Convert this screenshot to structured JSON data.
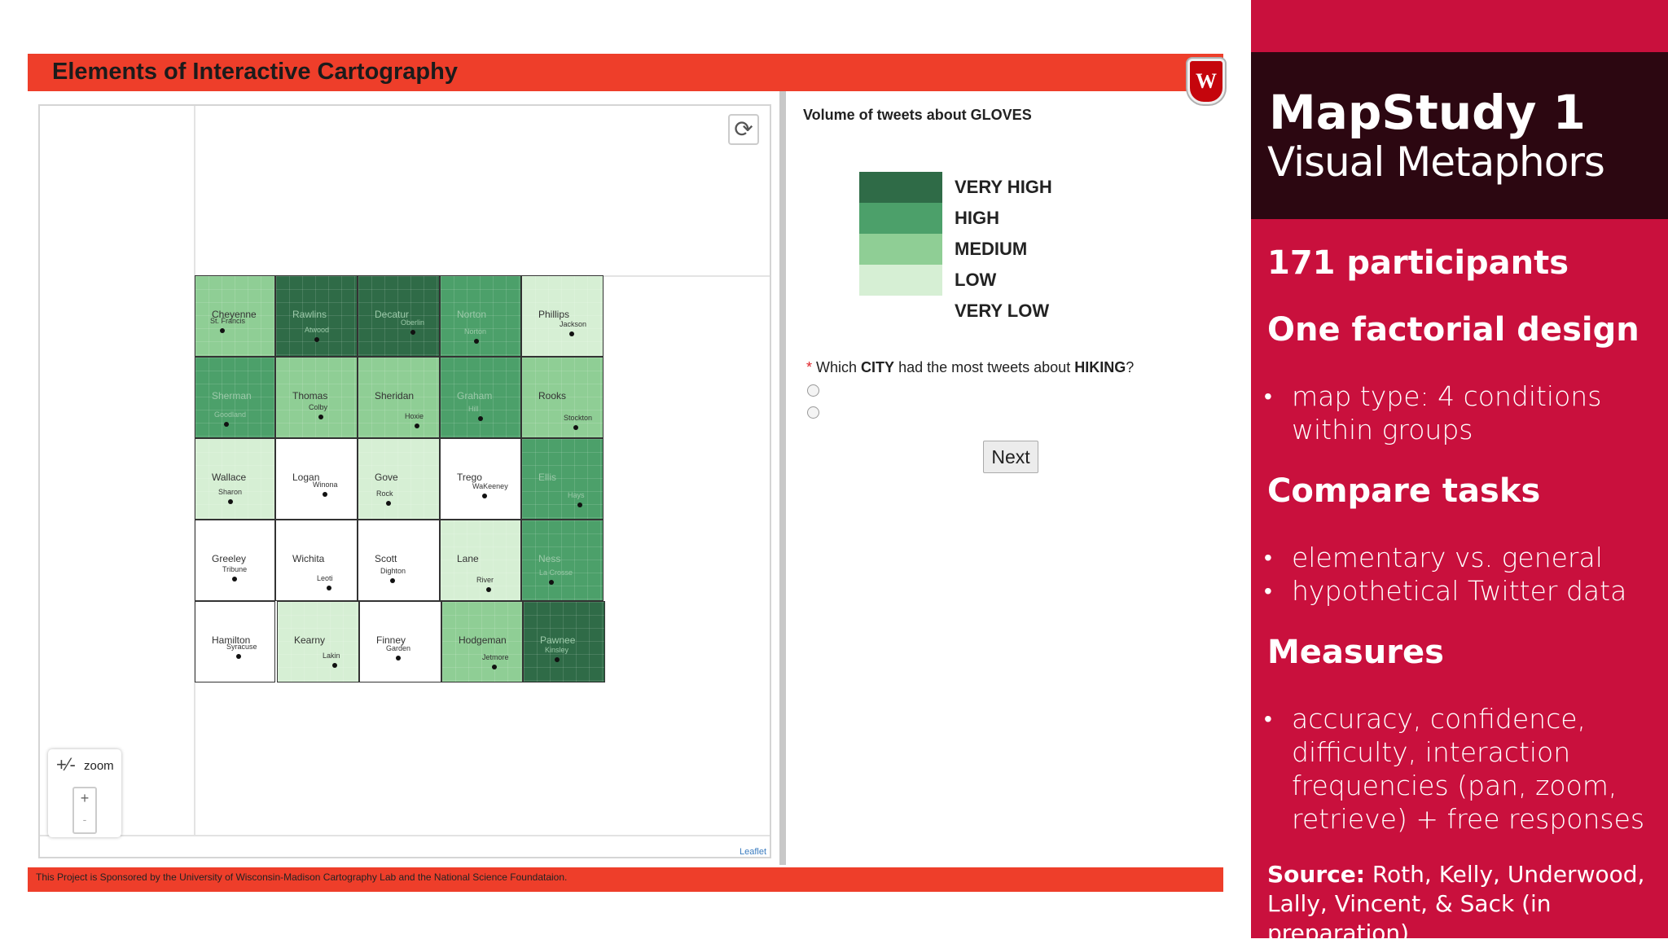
{
  "app": {
    "title": "Elements of Interactive Cartography",
    "crest_letter": "W",
    "footer": "This Project is Sponsored by the University of Wisconsin-Madison Cartography Lab and the National Science Foundataion.",
    "leaflet_attr": "Leaflet",
    "zoom_label": "zoom",
    "zoom_icon_symbol": "+⁄-",
    "zoom_plus": "+",
    "zoom_minus": "-",
    "refresh_symbol": "⟳"
  },
  "legend": {
    "title": "Volume of tweets about GLOVES",
    "classes": [
      {
        "label": "VERY HIGH",
        "color": "#2f6b47"
      },
      {
        "label": "HIGH",
        "color": "#4ca06a"
      },
      {
        "label": "MEDIUM",
        "color": "#8fce95"
      },
      {
        "label": "LOW",
        "color": "#d6efd4"
      },
      {
        "label": "VERY LOW",
        "color": "#ffffff"
      }
    ]
  },
  "question": {
    "asterisk": "*",
    "prefix": "Which ",
    "keyword1": "CITY",
    "middle": " had the most tweets about ",
    "keyword2": "HIKING",
    "suffix": "?",
    "next_label": "Next"
  },
  "counties": [
    {
      "name": "Cheyenne",
      "level": 2,
      "cities": [
        "St. Francis"
      ]
    },
    {
      "name": "Rawlins",
      "level": 0,
      "cities": [
        "Atwood"
      ]
    },
    {
      "name": "Decatur",
      "level": 0,
      "cities": [
        "Oberlin"
      ]
    },
    {
      "name": "Norton",
      "level": 1,
      "cities": [
        "Norton"
      ]
    },
    {
      "name": "Phillips",
      "level": 3,
      "cities": [
        "Jackson"
      ]
    },
    {
      "name": "Sherman",
      "level": 1,
      "cities": [
        "Goodland"
      ]
    },
    {
      "name": "Thomas",
      "level": 2,
      "cities": [
        "Colby"
      ]
    },
    {
      "name": "Sheridan",
      "level": 2,
      "cities": [
        "Hoxie"
      ]
    },
    {
      "name": "Graham",
      "level": 1,
      "cities": [
        "Hill"
      ]
    },
    {
      "name": "Rooks",
      "level": 2,
      "cities": [
        "Stockton"
      ]
    },
    {
      "name": "Wallace",
      "level": 3,
      "cities": [
        "Sharon"
      ]
    },
    {
      "name": "Logan",
      "level": 4,
      "cities": [
        "Winona"
      ]
    },
    {
      "name": "Gove",
      "level": 3,
      "cities": [
        "Rock"
      ]
    },
    {
      "name": "Trego",
      "level": 4,
      "cities": [
        "WaKeeney"
      ]
    },
    {
      "name": "Ellis",
      "level": 1,
      "cities": [
        "Hays"
      ]
    },
    {
      "name": "Greeley",
      "level": 4,
      "cities": [
        "Tribune"
      ]
    },
    {
      "name": "Wichita",
      "level": 4,
      "cities": [
        "Leoti"
      ]
    },
    {
      "name": "Scott",
      "level": 4,
      "cities": [
        "Dighton"
      ]
    },
    {
      "name": "Lane",
      "level": 3,
      "cities": [
        "River"
      ]
    },
    {
      "name": "Ness",
      "level": 1,
      "cities": [
        "La Crosse"
      ]
    },
    {
      "name": "Hamilton",
      "level": 4,
      "cities": [
        "Syracuse"
      ]
    },
    {
      "name": "Kearny",
      "level": 3,
      "cities": [
        "Lakin"
      ]
    },
    {
      "name": "Finney",
      "level": 4,
      "cities": [
        "Garden"
      ]
    },
    {
      "name": "Hodgeman",
      "level": 2,
      "cities": [
        "Jetmore"
      ]
    },
    {
      "name": "Pawnee",
      "level": 0,
      "cities": [
        "Kinsley"
      ]
    }
  ],
  "panel": {
    "title": "MapStudy 1",
    "subtitle": "Visual Metaphors",
    "sections": [
      {
        "heading": "171 participants",
        "bullets": []
      },
      {
        "heading": "One factorial design",
        "bullets": [
          "map type: 4 conditions within groups"
        ]
      },
      {
        "heading": "Compare tasks",
        "bullets": [
          "elementary vs. general",
          "hypothetical Twitter data"
        ]
      },
      {
        "heading": "Measures",
        "bullets": [
          "accuracy, confidence, difficulty, interaction frequencies (pan, zoom, retrieve) + free responses"
        ]
      }
    ],
    "source_label": "Source:",
    "source_text": " Roth, Kelly, Underwood, Lally, Vincent, & Sack (in preparation)"
  }
}
